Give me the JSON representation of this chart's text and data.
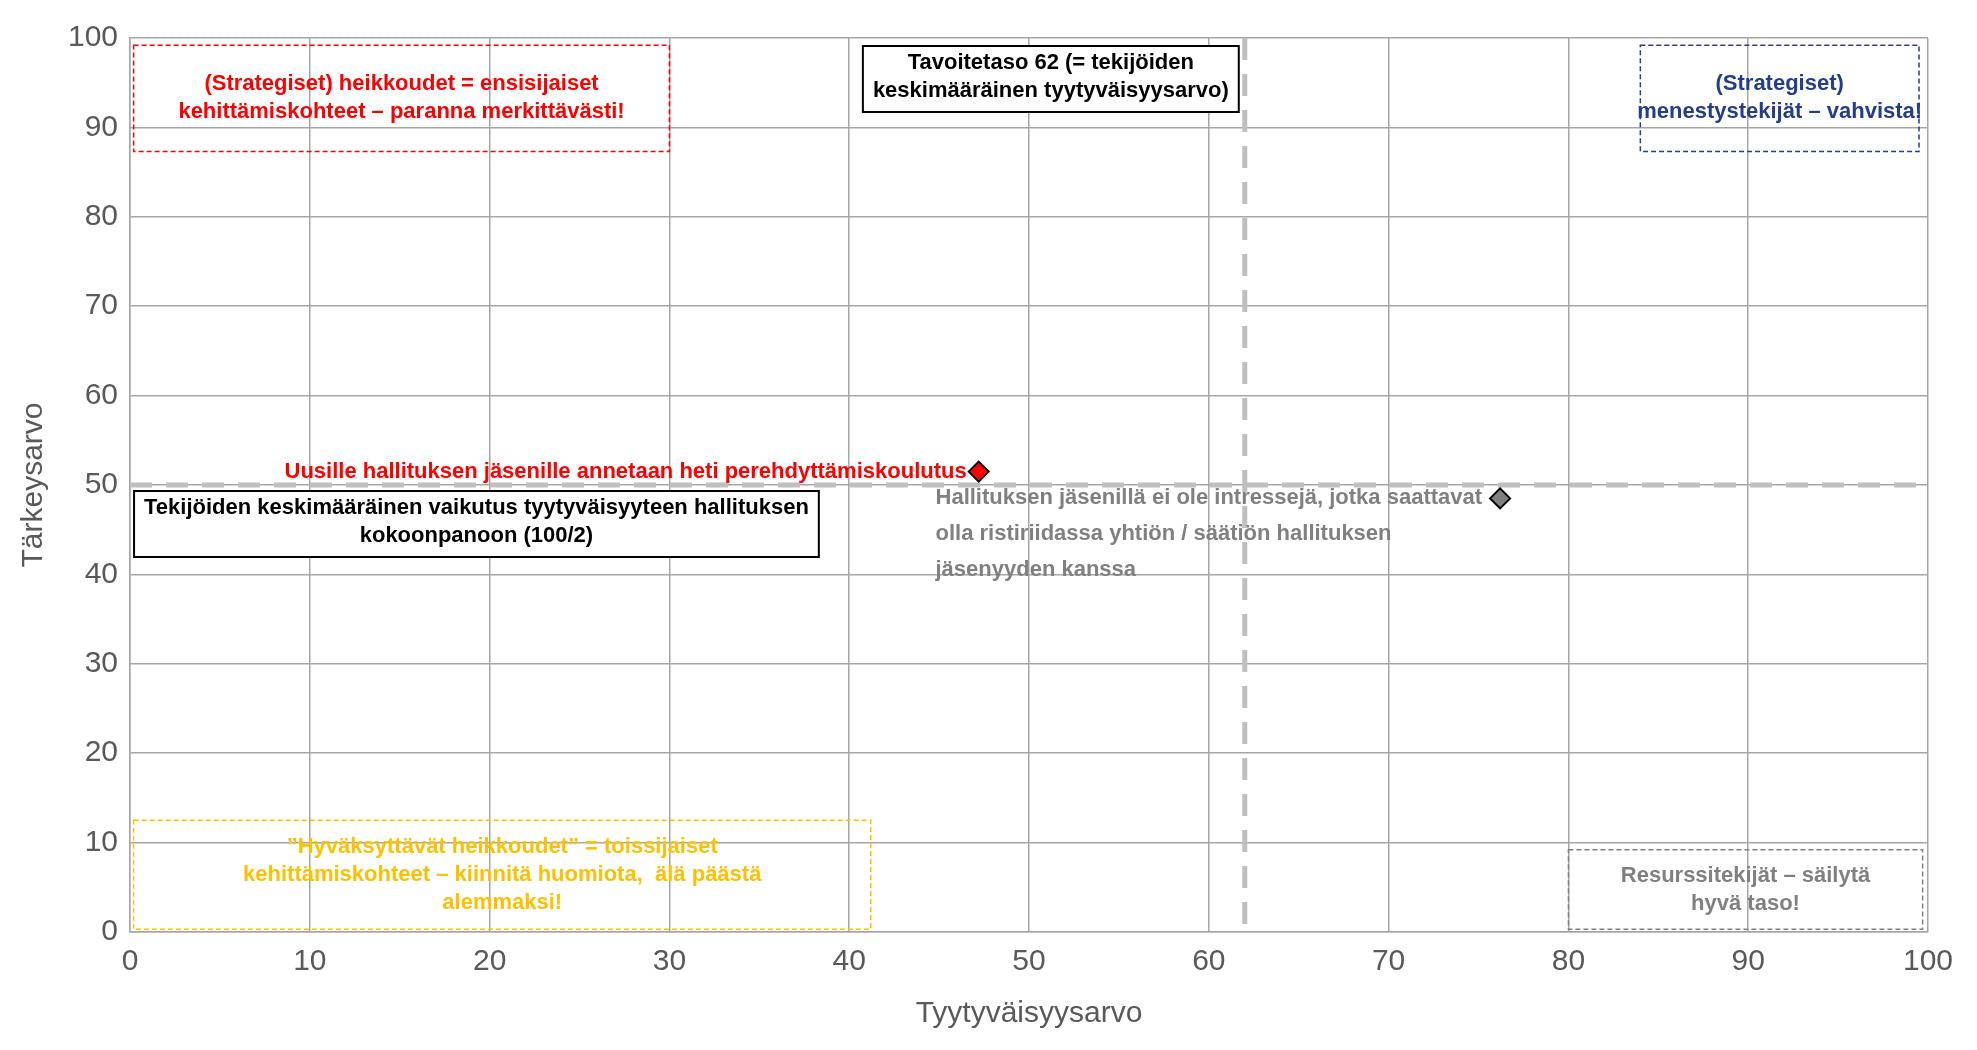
{
  "chart_data": {
    "type": "scatter",
    "xlabel": "Tyytyväisyysarvo",
    "ylabel": "Tärkeysarvo",
    "xlim": [
      0,
      100
    ],
    "ylim": [
      0,
      100
    ],
    "xticks": [
      0,
      10,
      20,
      30,
      40,
      50,
      60,
      70,
      80,
      90,
      100
    ],
    "yticks": [
      0,
      10,
      20,
      30,
      40,
      50,
      60,
      70,
      80,
      90,
      100
    ],
    "grid": true,
    "marker": "diamond",
    "series": [
      {
        "color": "#ff0000",
        "x": [
          47.2
        ],
        "values": [
          51.5
        ]
      },
      {
        "color": "#808080",
        "x": [
          76.2
        ],
        "values": [
          48.5
        ]
      }
    ],
    "ref_lines": [
      {
        "axis": "x",
        "value": 62,
        "label": "Tavoitetaso 62 (= tekijöiden keskimääräinen tyytyväisyysarvo)",
        "color": "#bfbfbf",
        "line_style": "dashed"
      },
      {
        "axis": "y",
        "value": 50,
        "label": "Tekijöiden keskimääräinen vaikutus tyytyväisyyteen hallituksen kokoonpanoon (100/2)",
        "color": "#bfbfbf",
        "line_style": "dashed"
      }
    ],
    "annotations": [
      {
        "text": "Uusille hallituksen jäsenille annetaan heti perehdyttämiskoulutus",
        "x": 47.2,
        "y": 51.5
      },
      {
        "text": "Hallituksen jäsenillä ei ole intressejä, jotka saattavat olla ristiriidassa yhtiön / säätiön hallituksen jäsenyyden kanssa",
        "x": 76.2,
        "y": 48.5
      },
      "(Strategiset) heikkoudet = ensisijaiset kehittämiskohteet – paranna merkittävästi!",
      "(Strategiset) menestystekijät – vahvista!",
      "”Hyväksyttävät heikkoudet” = toissijaiset kehittämiskohteet – kiinnitä huomiota,  älä päästä alemmaksi!",
      "Resurssitekijät – säilytä hyvä taso!"
    ]
  }
}
